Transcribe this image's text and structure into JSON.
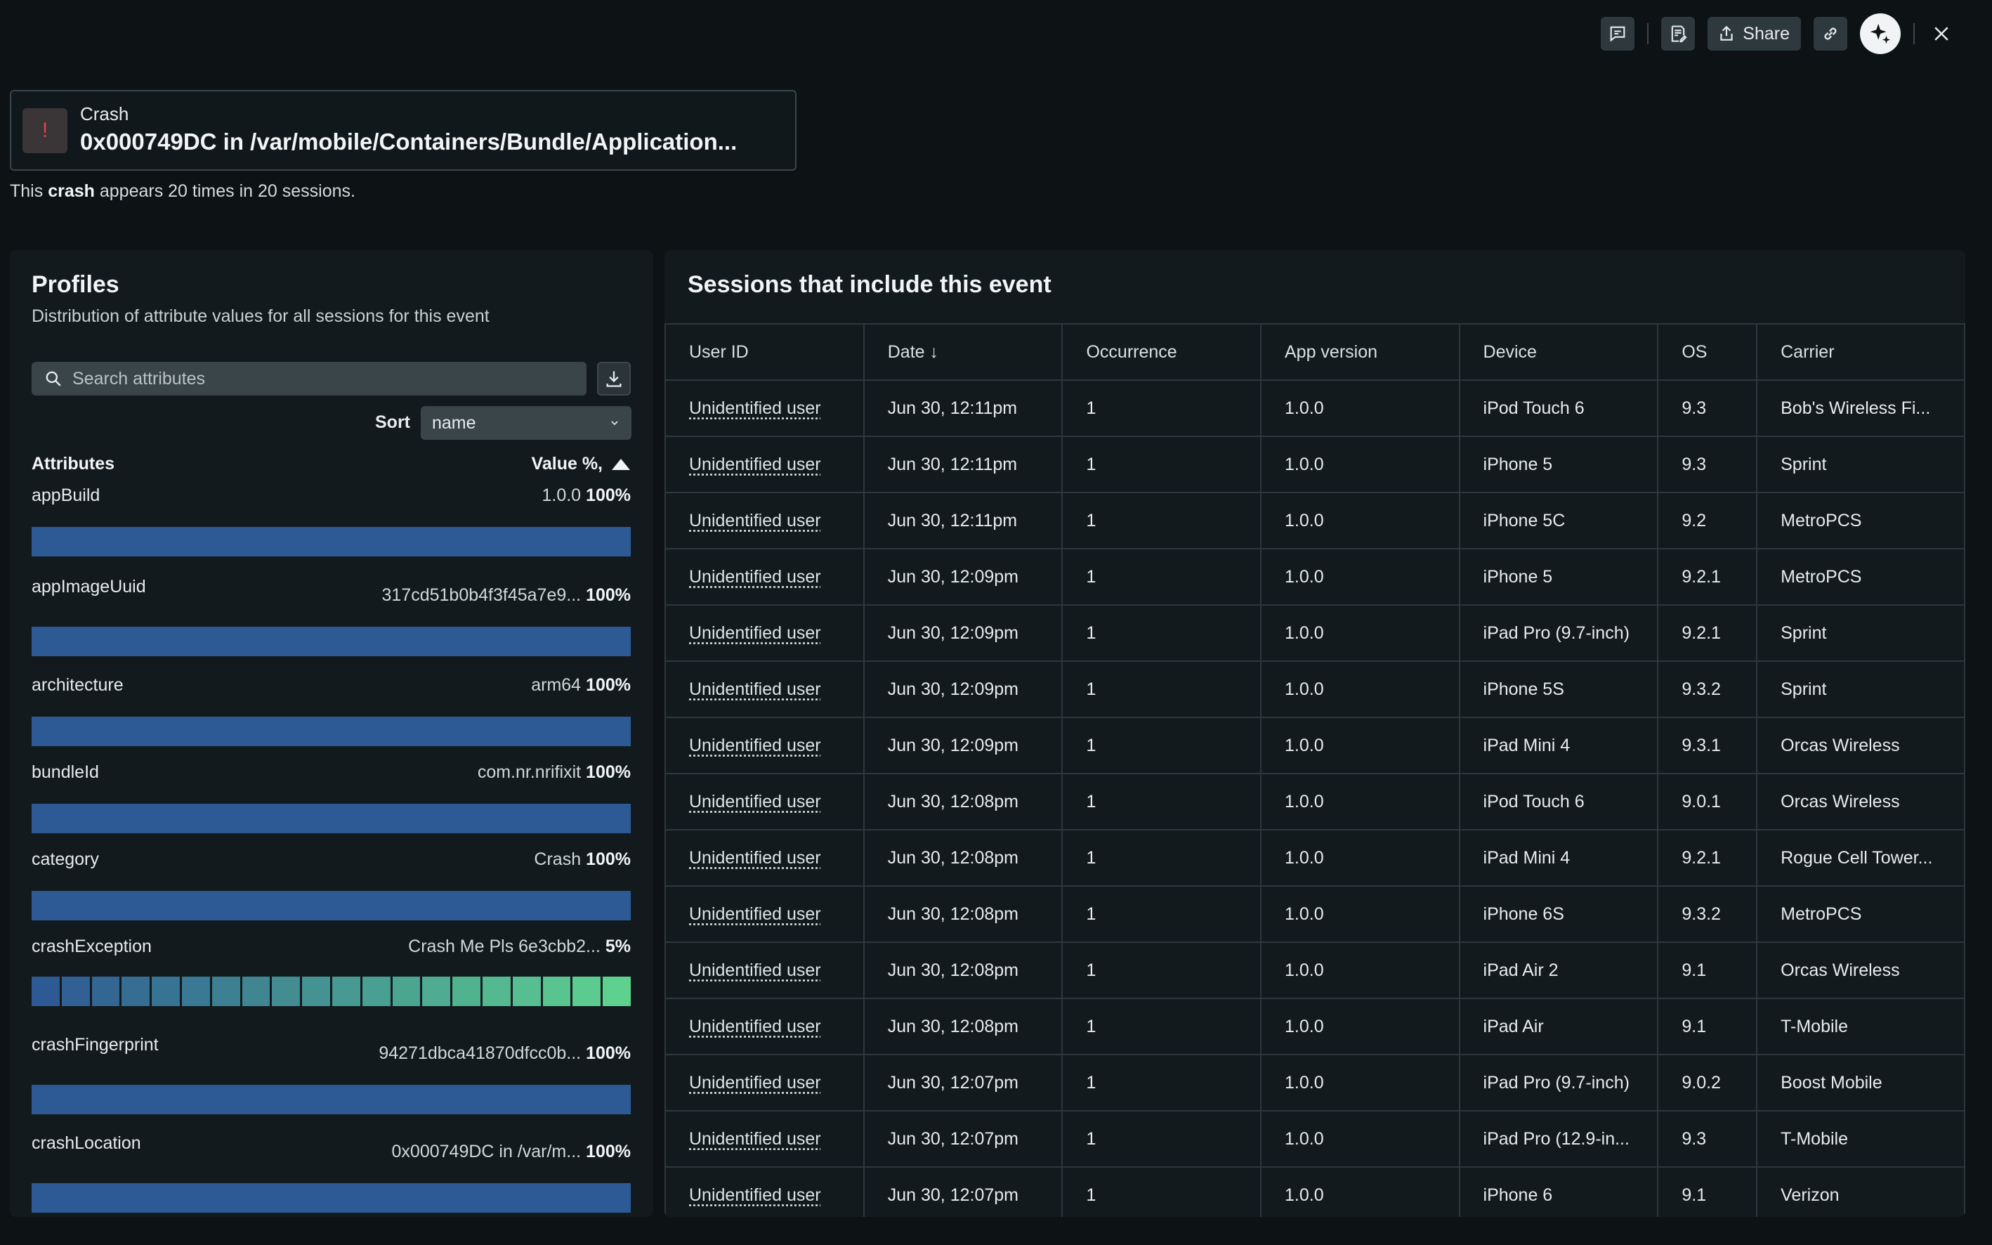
{
  "toolbar": {
    "share_label": "Share"
  },
  "event": {
    "type": "Crash",
    "name": "0x000749DC in /var/mobile/Containers/Bundle/Application...",
    "summary_prefix": "This",
    "summary_bold": "crash",
    "summary_suffix": "appears 20 times in 20 sessions."
  },
  "profiles": {
    "title": "Profiles",
    "subtitle": "Distribution of attribute values for all sessions for this event",
    "search_placeholder": "Search attributes",
    "sort_label": "Sort",
    "sort_value": "name",
    "attributes_header": "Attributes",
    "value_header": "Value %,",
    "attributes": [
      {
        "name": "appBuild",
        "value": "1.0.0",
        "percent": "100%",
        "fraction": 1.0
      },
      {
        "name": "appImageUuid",
        "value": "317cd51b0b4f3f45a7e9...",
        "percent": "100%",
        "fraction": 1.0
      },
      {
        "name": "architecture",
        "value": "arm64",
        "percent": "100%",
        "fraction": 1.0
      },
      {
        "name": "bundleId",
        "value": "com.nr.nrifixit",
        "percent": "100%",
        "fraction": 1.0
      },
      {
        "name": "category",
        "value": "Crash",
        "percent": "100%",
        "fraction": 1.0
      },
      {
        "name": "crashException",
        "value": "Crash Me Pls 6e3cbb2...",
        "percent": "5%",
        "fraction": 0.05,
        "segments": 20
      },
      {
        "name": "crashFingerprint",
        "value": "94271dbca41870dfcc0b...",
        "percent": "100%",
        "fraction": 1.0
      },
      {
        "name": "crashLocation",
        "value": "0x000749DC in /var/m...",
        "percent": "100%",
        "fraction": 1.0
      }
    ],
    "colors": {
      "bar": "#2d5a94",
      "seg_start": "#2d5a94",
      "seg_end": "#5ed18f"
    }
  },
  "sessions": {
    "title": "Sessions that include this event",
    "columns": [
      "User ID",
      "Date ↓",
      "Occurrence",
      "App version",
      "Device",
      "OS",
      "Carrier"
    ],
    "rows": [
      [
        "Unidentified user",
        "Jun 30, 12:11pm",
        "1",
        "1.0.0",
        "iPod Touch 6",
        "9.3",
        "Bob's Wireless Fi..."
      ],
      [
        "Unidentified user",
        "Jun 30, 12:11pm",
        "1",
        "1.0.0",
        "iPhone 5",
        "9.3",
        "Sprint"
      ],
      [
        "Unidentified user",
        "Jun 30, 12:11pm",
        "1",
        "1.0.0",
        "iPhone 5C",
        "9.2",
        "MetroPCS"
      ],
      [
        "Unidentified user",
        "Jun 30, 12:09pm",
        "1",
        "1.0.0",
        "iPhone 5",
        "9.2.1",
        "MetroPCS"
      ],
      [
        "Unidentified user",
        "Jun 30, 12:09pm",
        "1",
        "1.0.0",
        "iPad Pro (9.7-inch)",
        "9.2.1",
        "Sprint"
      ],
      [
        "Unidentified user",
        "Jun 30, 12:09pm",
        "1",
        "1.0.0",
        "iPhone 5S",
        "9.3.2",
        "Sprint"
      ],
      [
        "Unidentified user",
        "Jun 30, 12:09pm",
        "1",
        "1.0.0",
        "iPad Mini 4",
        "9.3.1",
        "Orcas Wireless"
      ],
      [
        "Unidentified user",
        "Jun 30, 12:08pm",
        "1",
        "1.0.0",
        "iPod Touch 6",
        "9.0.1",
        "Orcas Wireless"
      ],
      [
        "Unidentified user",
        "Jun 30, 12:08pm",
        "1",
        "1.0.0",
        "iPad Mini 4",
        "9.2.1",
        "Rogue Cell Tower..."
      ],
      [
        "Unidentified user",
        "Jun 30, 12:08pm",
        "1",
        "1.0.0",
        "iPhone 6S",
        "9.3.2",
        "MetroPCS"
      ],
      [
        "Unidentified user",
        "Jun 30, 12:08pm",
        "1",
        "1.0.0",
        "iPad Air 2",
        "9.1",
        "Orcas Wireless"
      ],
      [
        "Unidentified user",
        "Jun 30, 12:08pm",
        "1",
        "1.0.0",
        "iPad Air",
        "9.1",
        "T-Mobile"
      ],
      [
        "Unidentified user",
        "Jun 30, 12:07pm",
        "1",
        "1.0.0",
        "iPad Pro (9.7-inch)",
        "9.0.2",
        "Boost Mobile"
      ],
      [
        "Unidentified user",
        "Jun 30, 12:07pm",
        "1",
        "1.0.0",
        "iPad Pro (12.9-in...",
        "9.3",
        "T-Mobile"
      ],
      [
        "Unidentified user",
        "Jun 30, 12:07pm",
        "1",
        "1.0.0",
        "iPhone 6",
        "9.1",
        "Verizon"
      ]
    ]
  },
  "colors": {
    "background": "#0d1214",
    "panel": "#121a1d",
    "crash_accent": "#e0424d"
  }
}
